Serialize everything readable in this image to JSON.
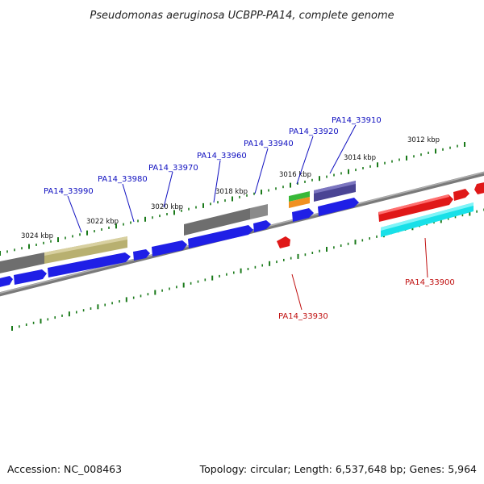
{
  "title": "Pseudomonas aeruginosa UCBPP-PA14, complete genome",
  "footer": {
    "accession": "Accession: NC_008463",
    "topology": "Topology: circular; Length: 6,537,648 bp; Genes: 5,964"
  },
  "colors": {
    "label_forward": "#1010c0",
    "label_reverse": "#c01010",
    "tick": "#1a7a1a",
    "backbone": "#808080",
    "cds_forward": "#1f1fe6",
    "cds_reverse": "#e01818",
    "gene_gray": "#6e6e6e",
    "gene_olive": "#b8b070",
    "gene_slate": "#4a4494",
    "gene_cyan": "#18e0e8",
    "gene_green": "#38b838",
    "gene_orange": "#f09020"
  },
  "kbp_labels": [
    "3024 kbp",
    "3022 kbp",
    "3020 kbp",
    "3018 kbp",
    "3016 kbp",
    "3014 kbp",
    "3012 kbp"
  ],
  "gene_labels": [
    {
      "name": "PA14_33990",
      "strand": "forward"
    },
    {
      "name": "PA14_33980",
      "strand": "forward"
    },
    {
      "name": "PA14_33970",
      "strand": "forward"
    },
    {
      "name": "PA14_33960",
      "strand": "forward"
    },
    {
      "name": "PA14_33940",
      "strand": "forward"
    },
    {
      "name": "PA14_33920",
      "strand": "forward"
    },
    {
      "name": "PA14_33910",
      "strand": "forward"
    },
    {
      "name": "PA14_33930",
      "strand": "reverse"
    },
    {
      "name": "PA14_33900",
      "strand": "reverse"
    }
  ]
}
